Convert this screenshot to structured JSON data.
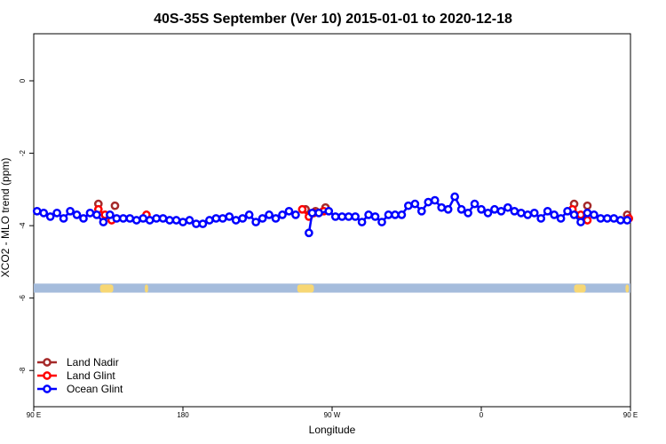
{
  "chart_data": {
    "type": "line",
    "title": "40S-35S September (Ver 10)   2015-01-01 to 2020-12-18",
    "xlabel": "Longitude",
    "ylabel": "XCO2 - MLO trend (ppm)",
    "xlim": [
      0,
      360
    ],
    "ylim": [
      -9.0,
      1.3
    ],
    "xticks": [
      {
        "value": 0,
        "label": "90 E"
      },
      {
        "value": 90,
        "label": "180"
      },
      {
        "value": 180,
        "label": "90 W"
      },
      {
        "value": 270,
        "label": "0"
      },
      {
        "value": 360,
        "label": "90 E"
      }
    ],
    "yticks": [
      0,
      -2,
      -4,
      -6,
      -8
    ],
    "legend_position": "bottom-left",
    "land_band": {
      "ymin": -5.85,
      "ymax": -5.6,
      "ocean_color": "#a5bcdc",
      "land_color": "#f7d774"
    },
    "series": [
      {
        "name": "Land Nadir",
        "color": "#a52a2a",
        "points": [
          [
            39,
            -3.4
          ],
          [
            49,
            -3.45
          ],
          [
            164,
            -3.55
          ],
          [
            170,
            -3.6
          ],
          [
            176,
            -3.5
          ],
          [
            326,
            -3.4
          ],
          [
            334,
            -3.45
          ],
          [
            358,
            -3.7
          ]
        ]
      },
      {
        "name": "Land Glint",
        "color": "#ff0000",
        "points": [
          [
            39,
            -3.55
          ],
          [
            43,
            -3.7
          ],
          [
            47,
            -3.85
          ],
          [
            68,
            -3.7
          ],
          [
            162,
            -3.55
          ],
          [
            166,
            -3.75
          ],
          [
            169,
            -3.65
          ],
          [
            175,
            -3.6
          ],
          [
            325,
            -3.55
          ],
          [
            330,
            -3.7
          ],
          [
            334,
            -3.85
          ],
          [
            359,
            -3.8
          ]
        ]
      },
      {
        "name": "Ocean Glint",
        "color": "#0000ff",
        "points": [
          [
            2,
            -3.6
          ],
          [
            6,
            -3.65
          ],
          [
            10,
            -3.75
          ],
          [
            14,
            -3.65
          ],
          [
            18,
            -3.8
          ],
          [
            22,
            -3.6
          ],
          [
            26,
            -3.7
          ],
          [
            30,
            -3.8
          ],
          [
            34,
            -3.65
          ],
          [
            38,
            -3.7
          ],
          [
            42,
            -3.9
          ],
          [
            46,
            -3.7
          ],
          [
            50,
            -3.8
          ],
          [
            54,
            -3.8
          ],
          [
            58,
            -3.8
          ],
          [
            62,
            -3.85
          ],
          [
            66,
            -3.8
          ],
          [
            70,
            -3.85
          ],
          [
            74,
            -3.8
          ],
          [
            78,
            -3.8
          ],
          [
            82,
            -3.85
          ],
          [
            86,
            -3.85
          ],
          [
            90,
            -3.9
          ],
          [
            94,
            -3.85
          ],
          [
            98,
            -3.95
          ],
          [
            102,
            -3.95
          ],
          [
            106,
            -3.85
          ],
          [
            110,
            -3.8
          ],
          [
            114,
            -3.8
          ],
          [
            118,
            -3.75
          ],
          [
            122,
            -3.85
          ],
          [
            126,
            -3.8
          ],
          [
            130,
            -3.7
          ],
          [
            134,
            -3.9
          ],
          [
            138,
            -3.8
          ],
          [
            142,
            -3.7
          ],
          [
            146,
            -3.8
          ],
          [
            150,
            -3.7
          ],
          [
            154,
            -3.6
          ],
          [
            158,
            -3.7
          ],
          [
            166,
            -4.2
          ],
          [
            168,
            -3.65
          ],
          [
            172,
            -3.65
          ],
          [
            178,
            -3.6
          ],
          [
            182,
            -3.75
          ],
          [
            186,
            -3.75
          ],
          [
            190,
            -3.75
          ],
          [
            194,
            -3.75
          ],
          [
            198,
            -3.9
          ],
          [
            202,
            -3.7
          ],
          [
            206,
            -3.75
          ],
          [
            210,
            -3.9
          ],
          [
            214,
            -3.7
          ],
          [
            218,
            -3.7
          ],
          [
            222,
            -3.7
          ],
          [
            226,
            -3.45
          ],
          [
            230,
            -3.4
          ],
          [
            234,
            -3.6
          ],
          [
            238,
            -3.35
          ],
          [
            242,
            -3.3
          ],
          [
            246,
            -3.5
          ],
          [
            250,
            -3.55
          ],
          [
            254,
            -3.2
          ],
          [
            258,
            -3.55
          ],
          [
            262,
            -3.65
          ],
          [
            266,
            -3.4
          ],
          [
            270,
            -3.55
          ],
          [
            274,
            -3.65
          ],
          [
            278,
            -3.55
          ],
          [
            282,
            -3.6
          ],
          [
            286,
            -3.5
          ],
          [
            290,
            -3.6
          ],
          [
            294,
            -3.65
          ],
          [
            298,
            -3.7
          ],
          [
            302,
            -3.65
          ],
          [
            306,
            -3.8
          ],
          [
            310,
            -3.6
          ],
          [
            314,
            -3.7
          ],
          [
            318,
            -3.8
          ],
          [
            322,
            -3.6
          ],
          [
            326,
            -3.7
          ],
          [
            330,
            -3.9
          ],
          [
            334,
            -3.65
          ],
          [
            338,
            -3.7
          ],
          [
            342,
            -3.8
          ],
          [
            346,
            -3.8
          ],
          [
            350,
            -3.8
          ],
          [
            354,
            -3.85
          ],
          [
            358,
            -3.85
          ]
        ]
      }
    ]
  }
}
